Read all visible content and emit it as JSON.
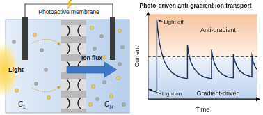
{
  "diagram": {
    "membrane_label": "Photoactive membrane",
    "light_label": "Light",
    "flux_label": "Ion flux",
    "left_concentration": {
      "symbol": "C",
      "subscript": "L"
    },
    "right_concentration": {
      "symbol": "C",
      "subscript": "H"
    }
  },
  "chart_data": {
    "type": "line",
    "title": "Photo-driven anti-gradient ion transport",
    "x_label": "Time",
    "y_label": "Current",
    "x": [
      0,
      3,
      6,
      7.9,
      8,
      9,
      10.5,
      12.5,
      15,
      18,
      22,
      27,
      32,
      35.9,
      36,
      37,
      39,
      42,
      46,
      51,
      57.9,
      58,
      59,
      61,
      64,
      68,
      73,
      77.9,
      78,
      79,
      81,
      84,
      88,
      94.9,
      95,
      96,
      98,
      100
    ],
    "values": [
      1.2,
      1.0,
      0.9,
      1.0,
      9.4,
      8.0,
      6.6,
      5.4,
      4.4,
      3.7,
      3.1,
      2.7,
      2.5,
      2.4,
      6.4,
      5.4,
      4.4,
      3.6,
      3.0,
      2.6,
      2.4,
      5.8,
      5.0,
      4.1,
      3.4,
      2.9,
      2.6,
      2.5,
      5.3,
      4.6,
      3.9,
      3.3,
      2.9,
      2.6,
      5.0,
      4.4,
      3.8,
      3.4
    ],
    "color": "#1d3461",
    "xlim": [
      0,
      100
    ],
    "ylim": [
      0,
      10
    ],
    "tick_labels": false,
    "grid": false,
    "reference_line": {
      "y": 5,
      "line_style": "dashed"
    },
    "regions": [
      {
        "label": "Anti-gradient",
        "position": "above"
      },
      {
        "label": "Gradient-driven",
        "position": "below"
      }
    ],
    "annotations": [
      {
        "text": "Light off",
        "x": 8,
        "y": 9.4
      },
      {
        "text": "Light on",
        "x": 0,
        "y": 1.2
      }
    ]
  }
}
